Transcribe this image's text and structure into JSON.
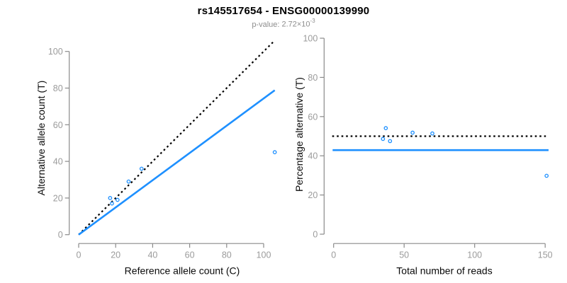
{
  "header": {
    "title": "rs145517654 - ENSG00000139990",
    "subtitle_label": "p-value:",
    "subtitle_mantissa": "2.72",
    "subtitle_times": "×10",
    "subtitle_exponent": "-3"
  },
  "colors": {
    "accent_blue": "#1E90FF",
    "identity_black": "#000000",
    "axis_gray": "#8a8a8a",
    "tick_label_gray": "#9b9b9b",
    "title_black": "#000000",
    "subtitle_gray": "#8e8e8e"
  },
  "chart_data": [
    {
      "type": "scatter",
      "panel": "left",
      "xlabel": "Reference allele count (C)",
      "ylabel": "Alternative allele count (T)",
      "xticks": [
        0,
        20,
        40,
        60,
        80,
        100
      ],
      "yticks": [
        0,
        20,
        40,
        60,
        80,
        100
      ],
      "xlim": [
        -5,
        111
      ],
      "ylim": [
        -5,
        111
      ],
      "grid": false,
      "legend": null,
      "point_style": "open-circle",
      "point_color": "#1E90FF",
      "points": [
        [
          17,
          20
        ],
        [
          18,
          17
        ],
        [
          21,
          19
        ],
        [
          27,
          29
        ],
        [
          34,
          36
        ],
        [
          106,
          45
        ]
      ],
      "lines": [
        {
          "name": "identity-line",
          "style": "dotted",
          "color": "#000000",
          "from": [
            0,
            0
          ],
          "to": [
            106,
            106
          ]
        },
        {
          "name": "fit-line",
          "style": "solid",
          "color": "#1E90FF",
          "from": [
            0,
            0
          ],
          "to": [
            106,
            78.8
          ]
        }
      ]
    },
    {
      "type": "scatter",
      "panel": "right",
      "xlabel": "Total number of reads",
      "ylabel": "Percentage alternative (T)",
      "xticks": [
        0,
        50,
        100,
        150
      ],
      "yticks": [
        0,
        20,
        40,
        60,
        80,
        100
      ],
      "xlim": [
        -7,
        154
      ],
      "ylim": [
        -5,
        105
      ],
      "grid": false,
      "legend": null,
      "point_style": "open-circle",
      "point_color": "#1E90FF",
      "points": [
        [
          37,
          54.1
        ],
        [
          35,
          48.6
        ],
        [
          40,
          47.5
        ],
        [
          56,
          51.8
        ],
        [
          70,
          51.4
        ],
        [
          151,
          29.8
        ]
      ],
      "lines": [
        {
          "name": "expected-50pct-line",
          "style": "dotted",
          "color": "#000000",
          "from": [
            -1,
            50
          ],
          "to": [
            150.5,
            50
          ]
        },
        {
          "name": "observed-ratio-line",
          "style": "solid",
          "color": "#1E90FF",
          "from": [
            -0.7,
            42.9
          ],
          "to": [
            152.4,
            42.9
          ]
        }
      ]
    }
  ]
}
